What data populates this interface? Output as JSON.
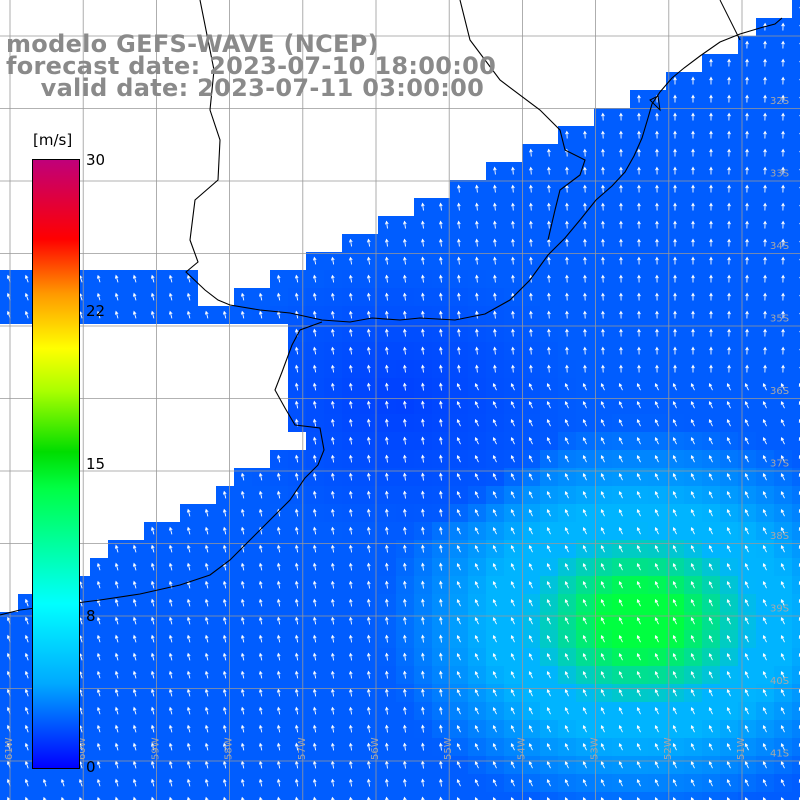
{
  "title": {
    "line1": "modelo GEFS-WAVE (NCEP)",
    "line2": "forecast date: 2023-07-10 18:00:00",
    "line3": "    valid date: 2023-07-11 03:00:00"
  },
  "colorbar": {
    "unit": "[m/s]",
    "ticks": [
      {
        "label": "30",
        "value": 30
      },
      {
        "label": "22",
        "value": 22
      },
      {
        "label": "15",
        "value": 15
      },
      {
        "label": "8",
        "value": 8
      },
      {
        "label": "0",
        "value": 0
      }
    ],
    "range": [
      0,
      30
    ]
  },
  "map": {
    "lat_labels": [
      "32S",
      "33S",
      "34S",
      "35S",
      "36S",
      "37S",
      "38S",
      "39S",
      "40S",
      "41S"
    ],
    "lon_labels": [
      "61W",
      "60W",
      "59W",
      "58W",
      "57W",
      "56W",
      "55W",
      "54W",
      "53W",
      "52W",
      "51W"
    ],
    "ocean_colors": {
      "low": "#0040ff",
      "mid": "#00b4ff",
      "high": "#00ff40"
    },
    "land_color": "#ffffff",
    "arrow_color": "#ffffff"
  }
}
